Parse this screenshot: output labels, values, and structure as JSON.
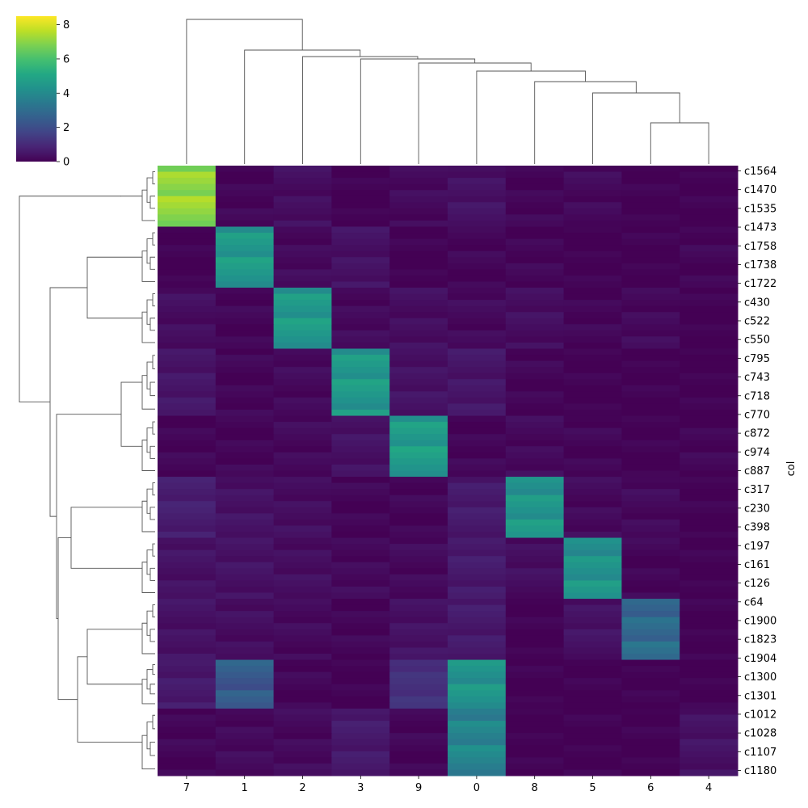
{
  "chart_data": {
    "type": "heatmap",
    "title": "",
    "xlabel": "",
    "ylabel": "col",
    "colormap": "viridis",
    "colorbar": {
      "min": 0,
      "max": 8.5,
      "ticks": [
        "0",
        "2",
        "4",
        "6",
        "8"
      ]
    },
    "columns": [
      "7",
      "1",
      "2",
      "3",
      "9",
      "0",
      "8",
      "5",
      "6",
      "4"
    ],
    "row_tick_labels": [
      "c1564",
      "c1470",
      "c1535",
      "c1473",
      "c1758",
      "c1738",
      "c1722",
      "c430",
      "c522",
      "c550",
      "c795",
      "c743",
      "c718",
      "c770",
      "c872",
      "c974",
      "c887",
      "c317",
      "c230",
      "c398",
      "c197",
      "c161",
      "c126",
      "c64",
      "c1900",
      "c1823",
      "c1904",
      "c1300",
      "c1301",
      "c1012",
      "c1028",
      "c1107",
      "c1180"
    ],
    "blocks": [
      {
        "rows": 10,
        "values": [
          7.1,
          0.1,
          0.3,
          0.0,
          0.2,
          0.4,
          0.1,
          0.2,
          0.0,
          0.0
        ]
      },
      {
        "rows": 10,
        "values": [
          0.0,
          4.5,
          0.2,
          0.4,
          0.0,
          0.1,
          0.1,
          0.0,
          0.0,
          0.1
        ]
      },
      {
        "rows": 10,
        "values": [
          0.3,
          0.1,
          4.5,
          0.2,
          0.3,
          0.2,
          0.3,
          0.1,
          0.2,
          0.0
        ]
      },
      {
        "rows": 11,
        "values": [
          0.5,
          0.1,
          0.2,
          4.5,
          0.4,
          0.5,
          0.1,
          0.0,
          0.0,
          0.0
        ]
      },
      {
        "rows": 10,
        "values": [
          0.1,
          0.1,
          0.2,
          0.4,
          4.6,
          0.1,
          0.2,
          0.1,
          0.0,
          0.1
        ]
      },
      {
        "rows": 10,
        "values": [
          0.7,
          0.4,
          0.3,
          0.1,
          0.1,
          0.6,
          4.4,
          0.2,
          0.2,
          0.0
        ]
      },
      {
        "rows": 10,
        "values": [
          0.4,
          0.4,
          0.3,
          0.2,
          0.2,
          0.6,
          0.3,
          4.3,
          0.1,
          0.0
        ]
      },
      {
        "rows": 10,
        "values": [
          0.4,
          0.3,
          0.2,
          0.1,
          0.4,
          0.6,
          0.0,
          0.4,
          2.9,
          0.0
        ]
      },
      {
        "rows": 8,
        "values": [
          0.6,
          2.4,
          0.1,
          0.0,
          1.2,
          4.4,
          0.0,
          0.0,
          0.0,
          0.0
        ]
      },
      {
        "rows": 11,
        "values": [
          0.1,
          0.2,
          0.2,
          0.6,
          0.1,
          3.8,
          0.0,
          0.0,
          0.0,
          0.4
        ]
      }
    ]
  }
}
